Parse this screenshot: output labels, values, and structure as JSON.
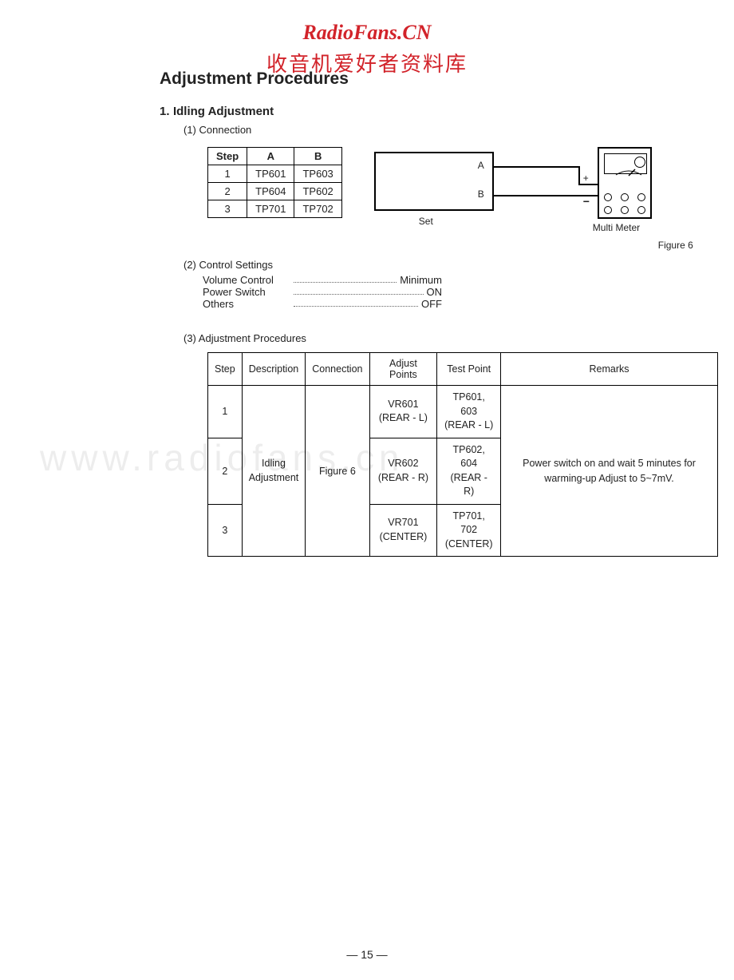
{
  "watermark": {
    "line1": "RadioFans.CN",
    "line2": "收音机爱好者资料库",
    "bg": "www.radiofans.cn"
  },
  "title": "Adjustment Procedures",
  "section1": {
    "num": "1.",
    "heading": "Idling Adjustment",
    "sub1_num": "(1)",
    "sub1_label": "Connection",
    "conn_table": {
      "headers": [
        "Step",
        "A",
        "B"
      ],
      "rows": [
        [
          "1",
          "TP601",
          "TP603"
        ],
        [
          "2",
          "TP604",
          "TP602"
        ],
        [
          "3",
          "TP701",
          "TP702"
        ]
      ]
    },
    "diagram": {
      "labelA": "A",
      "labelB": "B",
      "plus": "+",
      "minus": "−",
      "set_label": "Set",
      "meter_label": "Multi Meter",
      "figure_label": "Figure 6"
    },
    "sub2_num": "(2)",
    "sub2_label": "Control Settings",
    "settings": [
      {
        "label": "Volume Control",
        "value": "Minimum"
      },
      {
        "label": "Power Switch",
        "value": "ON"
      },
      {
        "label": "Others",
        "value": "OFF"
      }
    ],
    "sub3_num": "(3)",
    "sub3_label": "Adjustment Procedures",
    "proc_table": {
      "headers": [
        "Step",
        "Description",
        "Connection",
        "Adjust Points",
        "Test Point",
        "Remarks"
      ],
      "description": "Idling\nAdjustment",
      "connection": "Figure 6",
      "rows": [
        {
          "step": "1",
          "adjust": "VR601\n(REAR - L)",
          "test": "TP601, 603\n(REAR - L)"
        },
        {
          "step": "2",
          "adjust": "VR602\n(REAR - R)",
          "test": "TP602, 604\n(REAR - R)"
        },
        {
          "step": "3",
          "adjust": "VR701\n(CENTER)",
          "test": "TP701, 702\n(CENTER)"
        }
      ],
      "remarks": "Power switch on and wait 5 minutes for warming-up Adjust to 5~7mV."
    }
  },
  "page_number": "— 15 —",
  "colors": {
    "watermark_red": "#d2232a",
    "text": "#222222",
    "border": "#000000",
    "bg_wm": "rgba(0,0,0,0.07)"
  }
}
